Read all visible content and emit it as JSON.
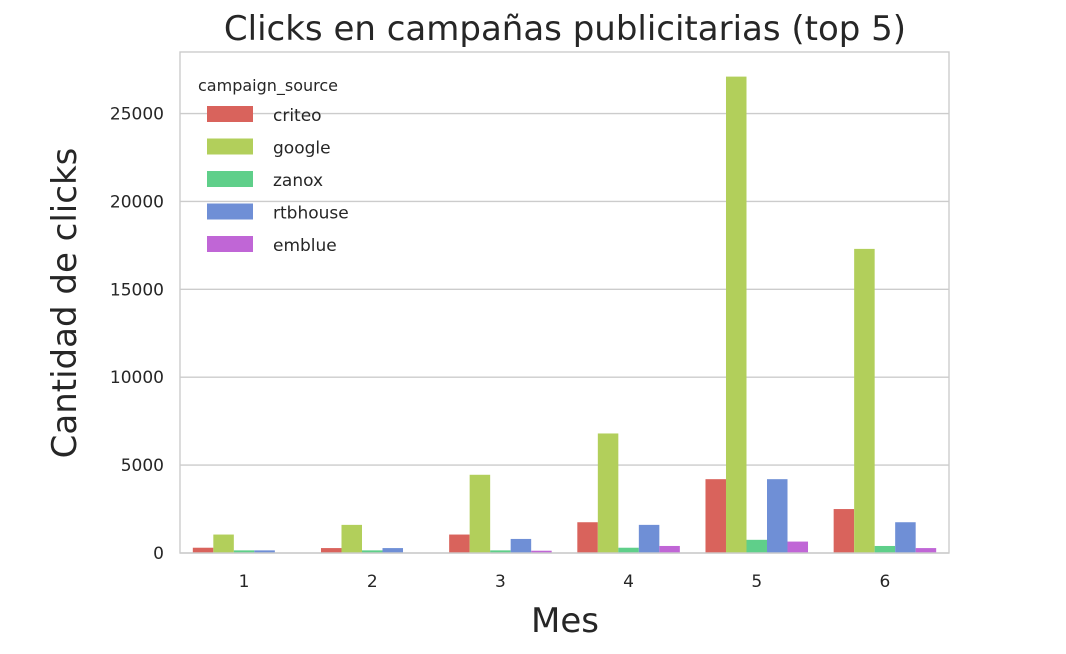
{
  "chart_data": {
    "type": "bar",
    "title": "Clicks en campañas publicitarias (top 5)",
    "xlabel": "Mes",
    "ylabel": "Cantidad de clicks",
    "categories": [
      "1",
      "2",
      "3",
      "4",
      "5",
      "6"
    ],
    "ylim": [
      0,
      28500
    ],
    "yticks": [
      0,
      5000,
      10000,
      15000,
      20000,
      25000
    ],
    "ytick_labels": [
      "0",
      "5000",
      "10000",
      "15000",
      "20000",
      "25000"
    ],
    "grid": true,
    "legend": {
      "title": "campaign_source",
      "placement": "top-left"
    },
    "series": [
      {
        "name": "criteo",
        "color": "#d9635c",
        "values": [
          300,
          280,
          1050,
          1750,
          4200,
          2500
        ]
      },
      {
        "name": "google",
        "color": "#b2cf5b",
        "values": [
          1050,
          1600,
          4450,
          6800,
          27100,
          17300
        ]
      },
      {
        "name": "zanox",
        "color": "#5fcf8a",
        "values": [
          150,
          150,
          150,
          300,
          750,
          400
        ]
      },
      {
        "name": "rtbhouse",
        "color": "#6f8fd6",
        "values": [
          150,
          280,
          800,
          1600,
          4200,
          1750
        ]
      },
      {
        "name": "emblue",
        "color": "#c066d6",
        "values": [
          0,
          0,
          130,
          400,
          650,
          280
        ]
      }
    ]
  }
}
